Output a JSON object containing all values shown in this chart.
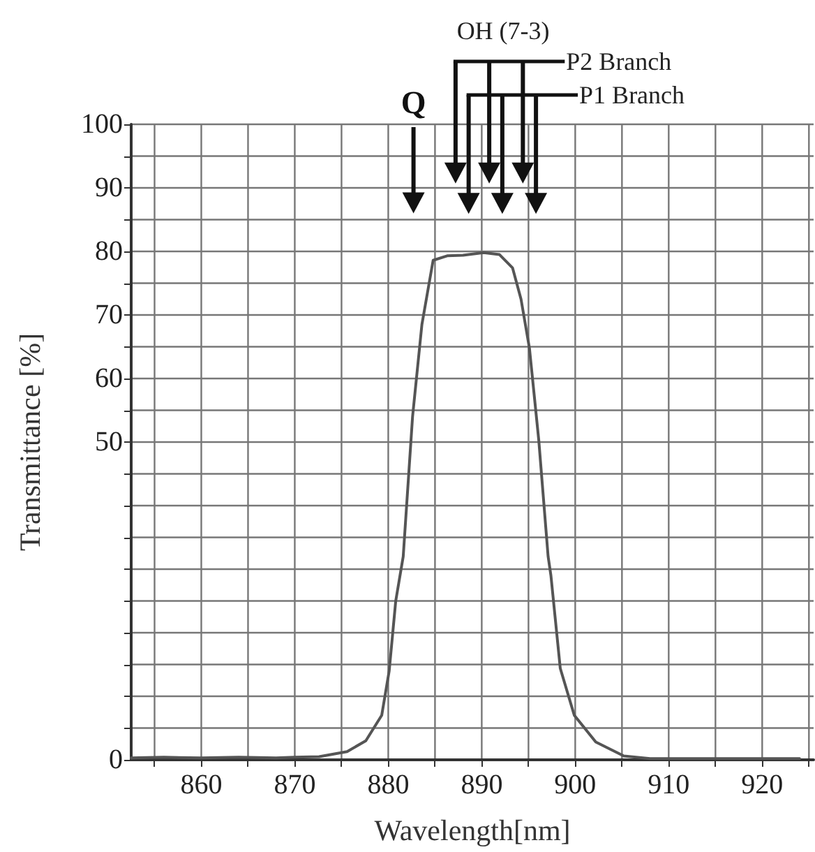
{
  "chart_data": {
    "type": "line",
    "xlabel": "Wavelength[nm]",
    "ylabel": "Transmittance [%]",
    "series": [
      {
        "color": "#555555",
        "x": [
          852.5,
          856,
          860,
          864,
          868,
          870,
          872.6,
          875.6,
          877.6,
          879.3,
          880.1,
          880.8,
          881.6,
          882.6,
          883.6,
          884.8,
          886.3,
          888,
          890.2,
          891.9,
          893.3,
          894.2,
          895.1,
          896.1,
          897.1,
          897.4,
          898.4,
          899.9,
          902.2,
          905.2,
          908,
          912,
          916,
          920,
          924
        ],
        "values": [
          0.3,
          0.4,
          0.3,
          0.4,
          0.3,
          0.4,
          0.5,
          1.3,
          3,
          7,
          14,
          25,
          32,
          54,
          68.5,
          78.6,
          79.3,
          79.4,
          79.8,
          79.5,
          77.4,
          72.5,
          64.8,
          50.3,
          32,
          29,
          14.4,
          7,
          2.8,
          0.6,
          0.2,
          0.2,
          0.2,
          0.2,
          0.2
        ]
      }
    ],
    "xlim": [
      852.5,
      925.5
    ],
    "xticks": [
      {
        "value": 855,
        "label": null
      },
      860,
      {
        "value": 865,
        "label": null
      },
      870,
      {
        "value": 875,
        "label": null
      },
      880,
      {
        "value": 885,
        "label": null
      },
      890,
      {
        "value": 895,
        "label": null
      },
      900,
      {
        "value": 905,
        "label": null
      },
      910,
      {
        "value": 915,
        "label": null
      },
      920,
      {
        "value": 925,
        "label": null
      }
    ],
    "ylim": [
      0,
      100
    ],
    "yticks": [
      0,
      {
        "value": 5,
        "label": null
      },
      {
        "value": 10,
        "label": null
      },
      {
        "value": 15,
        "label": null
      },
      {
        "value": 20,
        "label": null
      },
      {
        "value": 25,
        "label": null
      },
      {
        "value": 30,
        "label": null
      },
      {
        "value": 35,
        "label": null
      },
      {
        "value": 40,
        "label": null
      },
      {
        "value": 45,
        "label": null
      },
      50,
      {
        "value": 55,
        "label": null
      },
      60,
      {
        "value": 65,
        "label": null
      },
      70,
      {
        "value": 75,
        "label": null
      },
      80,
      {
        "value": 85,
        "label": null
      },
      90,
      {
        "value": 95,
        "label": null
      },
      100
    ],
    "grid": true,
    "marker": "none",
    "line_style": "solid",
    "annotations": [
      "Q",
      "OH (7-3)",
      "P2 Branch",
      "P1 Branch"
    ]
  }
}
